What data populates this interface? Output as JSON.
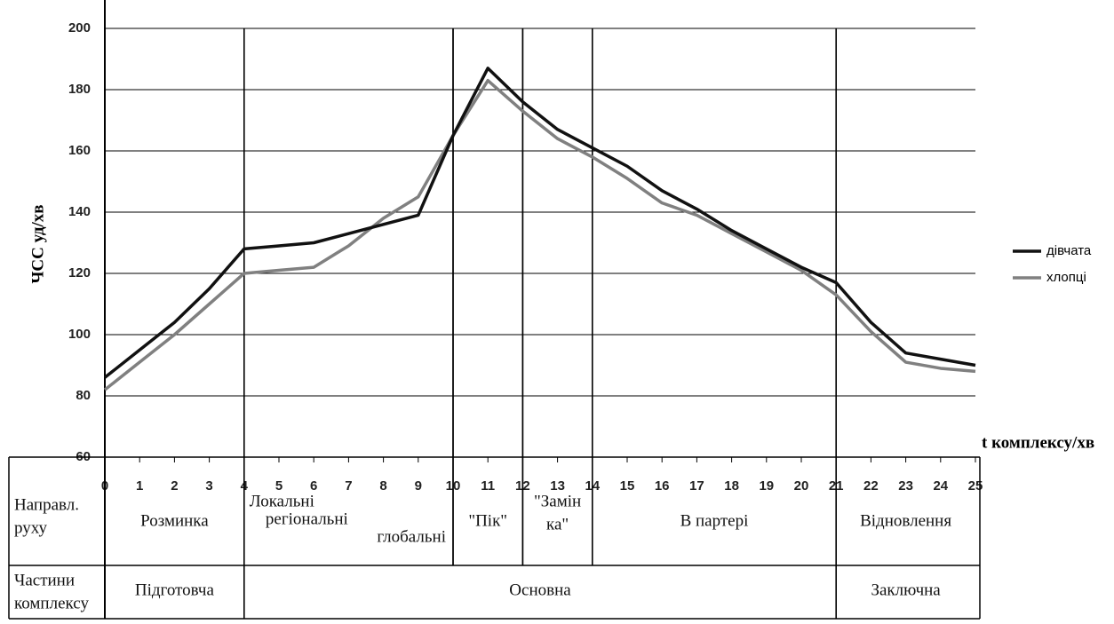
{
  "chart_data": {
    "type": "line",
    "y_label": "ЧСС уд/хв",
    "x_label": "t комплексу/хв",
    "x": [
      0,
      1,
      2,
      3,
      4,
      5,
      6,
      7,
      8,
      9,
      10,
      11,
      12,
      13,
      14,
      15,
      16,
      17,
      18,
      19,
      20,
      21,
      22,
      23,
      24,
      25
    ],
    "series": [
      {
        "name": "дівчата",
        "color": "#111111",
        "values": [
          86,
          95,
          104,
          115,
          128,
          129,
          130,
          133,
          136,
          139,
          165,
          187,
          176,
          167,
          161,
          155,
          147,
          141,
          134,
          128,
          122,
          117,
          104,
          94,
          92,
          90
        ]
      },
      {
        "name": "хлопці",
        "color": "#808080",
        "values": [
          82,
          91,
          100,
          110,
          120,
          121,
          122,
          129,
          138,
          145,
          165,
          183,
          173,
          164,
          158,
          151,
          143,
          139,
          133,
          127,
          121,
          113,
          101,
          91,
          89,
          88
        ]
      }
    ],
    "xlim": [
      0,
      25
    ],
    "ylim": [
      60,
      200
    ],
    "xticks": [
      0,
      1,
      2,
      3,
      4,
      5,
      6,
      7,
      8,
      9,
      10,
      11,
      12,
      13,
      14,
      15,
      16,
      17,
      18,
      19,
      20,
      21,
      22,
      23,
      24,
      25
    ],
    "yticks": [
      60,
      80,
      100,
      120,
      140,
      160,
      180,
      200
    ],
    "grid": true,
    "legend": "right",
    "table": {
      "direction_header": [
        "Направл.",
        "руху"
      ],
      "parts_header": [
        "Частини",
        "комплексу"
      ],
      "directions": [
        {
          "label": [
            "Розминка"
          ],
          "start": 0,
          "end": 4
        },
        {
          "label": [
            "Локальні",
            "регіональні",
            "глобальні"
          ],
          "start": 4,
          "end": 10
        },
        {
          "label": [
            "\"Пік\""
          ],
          "start": 10,
          "end": 12
        },
        {
          "label": [
            "\"Замін",
            "ка\""
          ],
          "start": 12,
          "end": 14
        },
        {
          "label": [
            "В партері"
          ],
          "start": 14,
          "end": 21
        },
        {
          "label": [
            "Відновлення"
          ],
          "start": 21,
          "end": 25
        }
      ],
      "parts": [
        {
          "label": "Підготовча",
          "start": 0,
          "end": 4
        },
        {
          "label": "Основна",
          "start": 4,
          "end": 21
        },
        {
          "label": "Заключна",
          "start": 21,
          "end": 25
        }
      ]
    }
  }
}
